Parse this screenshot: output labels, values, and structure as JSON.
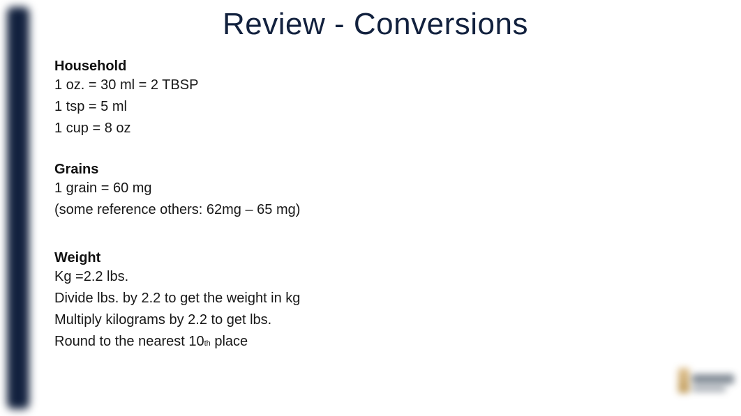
{
  "title": "Review - Conversions",
  "sections": {
    "household": {
      "heading": "Household",
      "lines": [
        "1 oz. = 30 ml = 2 TBSP",
        "1 tsp = 5 ml",
        "1 cup = 8 oz"
      ]
    },
    "grains": {
      "heading": "Grains",
      "lines": [
        "1 grain = 60 mg",
        "(some reference others: 62mg – 65 mg)"
      ]
    },
    "weight": {
      "heading": "Weight",
      "lines": [
        "Kg =2.2 lbs.",
        "Divide lbs. by 2.2 to get the weight in kg",
        "Multiply kilograms by 2.2 to get lbs."
      ],
      "last_line_prefix": "Round to the nearest 10",
      "last_line_subscript": "th",
      "last_line_suffix": " place"
    }
  },
  "colors": {
    "title": "#12213e",
    "bar": "#12213e",
    "text": "#181818",
    "background": "#ffffff"
  }
}
